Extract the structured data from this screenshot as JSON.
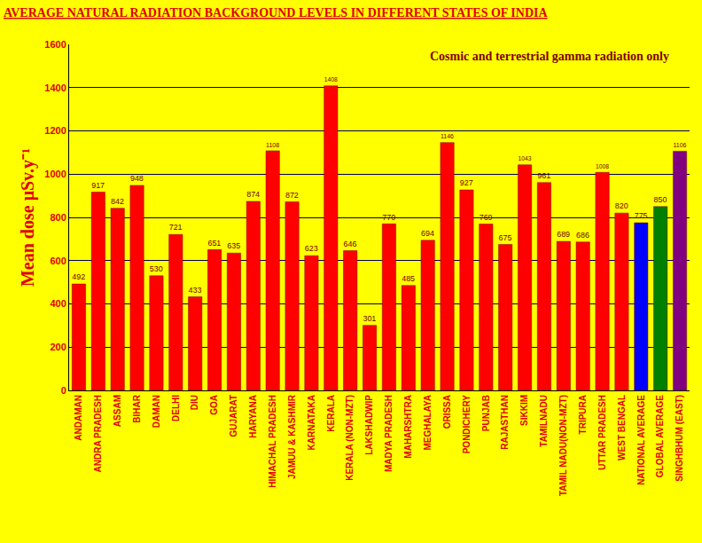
{
  "chart_data": {
    "type": "bar",
    "title": "AVERAGE NATURAL RADIATION BACKGROUND LEVELS IN DIFFERENT STATES OF INDIA",
    "annotation": "Cosmic and terrestrial gamma radiation only",
    "y_label": "Mean dose μSv.y⁻¹",
    "categories": [
      "ANDAMAN",
      "ANDRA PRADESH",
      "ASSAM",
      "BIHAR",
      "DAMAN",
      "DELHI",
      "DIU",
      "GOA",
      "GUJARAT",
      "HARYANA",
      "HIMACHAL PRADESH",
      "JAMUU & KASHMIR",
      "KARNATAKA",
      "KERALA",
      "KERALA (NON-MZT)",
      "LAKSHADWIP",
      "MADYA PRADESH",
      "MAHARSHTRA",
      "MEGHALAYA",
      "ORISSA",
      "PONDICHERY",
      "PUNJAB",
      "RAJASTHAN",
      "SIKKIM",
      "TAMILNADU",
      "TAMIL NADU(NON-MZT)",
      "TRIPURA",
      "UTTAR PRADESH",
      "WEST BENGAL",
      "NATIONAL AVERAGE",
      "GLOBAL AVERAGE",
      "SINGHBHUM (EAST)"
    ],
    "values": [
      492,
      917,
      842,
      948,
      530,
      721,
      433,
      651,
      635,
      874,
      1108,
      872,
      623,
      1408,
      646,
      301,
      770,
      485,
      694,
      1146,
      927,
      769,
      675,
      1043,
      961,
      689,
      686,
      1008,
      820,
      775,
      850,
      1106
    ],
    "colors": [
      "#ff0000",
      "#ff0000",
      "#ff0000",
      "#ff0000",
      "#ff0000",
      "#ff0000",
      "#ff0000",
      "#ff0000",
      "#ff0000",
      "#ff0000",
      "#ff0000",
      "#ff0000",
      "#ff0000",
      "#ff0000",
      "#ff0000",
      "#ff0000",
      "#ff0000",
      "#ff0000",
      "#ff0000",
      "#ff0000",
      "#ff0000",
      "#ff0000",
      "#ff0000",
      "#ff0000",
      "#ff0000",
      "#ff0000",
      "#ff0000",
      "#ff0000",
      "#ff0000",
      "#0000ff",
      "#008000",
      "#800080"
    ],
    "ylim": [
      0,
      1600
    ],
    "yticks": [
      0,
      200,
      400,
      600,
      800,
      1000,
      1200,
      1400,
      1600
    ],
    "grid": true,
    "data_labels": true
  }
}
